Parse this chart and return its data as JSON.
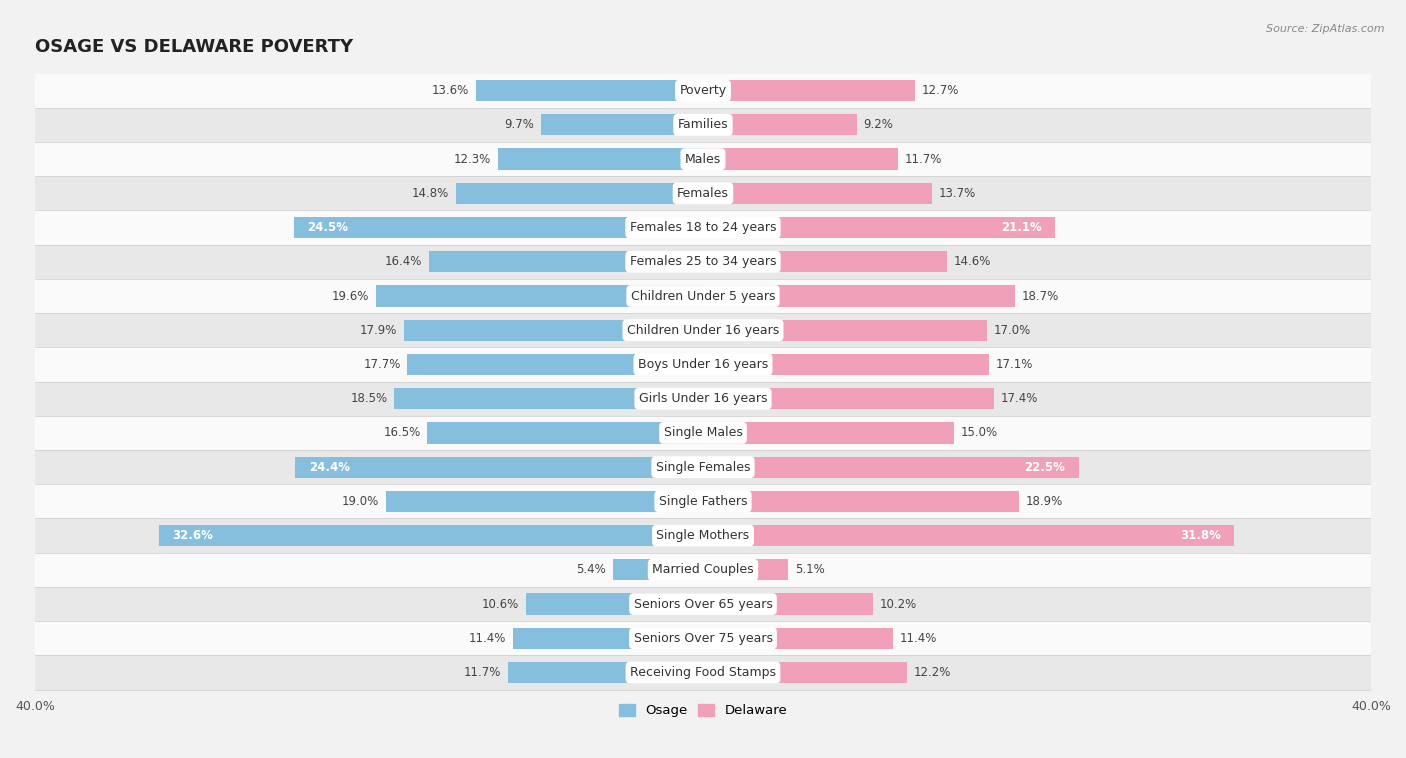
{
  "title": "OSAGE VS DELAWARE POVERTY",
  "source": "Source: ZipAtlas.com",
  "categories": [
    "Poverty",
    "Families",
    "Males",
    "Females",
    "Females 18 to 24 years",
    "Females 25 to 34 years",
    "Children Under 5 years",
    "Children Under 16 years",
    "Boys Under 16 years",
    "Girls Under 16 years",
    "Single Males",
    "Single Females",
    "Single Fathers",
    "Single Mothers",
    "Married Couples",
    "Seniors Over 65 years",
    "Seniors Over 75 years",
    "Receiving Food Stamps"
  ],
  "osage": [
    13.6,
    9.7,
    12.3,
    14.8,
    24.5,
    16.4,
    19.6,
    17.9,
    17.7,
    18.5,
    16.5,
    24.4,
    19.0,
    32.6,
    5.4,
    10.6,
    11.4,
    11.7
  ],
  "delaware": [
    12.7,
    9.2,
    11.7,
    13.7,
    21.1,
    14.6,
    18.7,
    17.0,
    17.1,
    17.4,
    15.0,
    22.5,
    18.9,
    31.8,
    5.1,
    10.2,
    11.4,
    12.2
  ],
  "osage_color": "#85bfdd",
  "delaware_color": "#f0a0b8",
  "background_color": "#f2f2f2",
  "row_light": "#fafafa",
  "row_dark": "#e8e8e8",
  "axis_max": 40.0,
  "bar_height": 0.62,
  "label_fontsize": 9.0,
  "value_fontsize": 8.5,
  "title_fontsize": 13,
  "legend_labels": [
    "Osage",
    "Delaware"
  ],
  "inside_label_threshold": 20.0
}
